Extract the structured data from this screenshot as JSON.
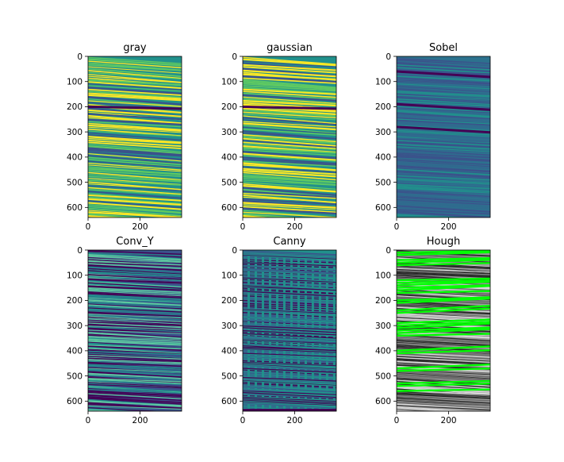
{
  "chart_data": {
    "type": "heatmap",
    "layout": "2x3 grid of image subplots",
    "panels": [
      {
        "title": "gray",
        "colormap": "viridis",
        "style": "gray",
        "xlim": [
          0,
          360
        ],
        "ylim": [
          640,
          0
        ],
        "xticks": [
          0,
          200
        ],
        "yticks": [
          0,
          100,
          200,
          300,
          400,
          500,
          600
        ]
      },
      {
        "title": "gaussian",
        "colormap": "viridis",
        "style": "gray",
        "xlim": [
          0,
          360
        ],
        "ylim": [
          640,
          0
        ],
        "xticks": [
          0,
          200
        ],
        "yticks": [
          0,
          100,
          200,
          300,
          400,
          500,
          600
        ]
      },
      {
        "title": "Sobel",
        "colormap": "viridis",
        "style": "sobel",
        "xlim": [
          0,
          360
        ],
        "ylim": [
          640,
          0
        ],
        "xticks": [
          0,
          200
        ],
        "yticks": [
          0,
          100,
          200,
          300,
          400,
          500,
          600
        ]
      },
      {
        "title": "Conv_Y",
        "colormap": "viridis",
        "style": "conv",
        "xlim": [
          0,
          360
        ],
        "ylim": [
          640,
          0
        ],
        "xticks": [
          0,
          200
        ],
        "yticks": [
          0,
          100,
          200,
          300,
          400,
          500,
          600
        ]
      },
      {
        "title": "Canny",
        "colormap": "viridis",
        "style": "canny",
        "xlim": [
          0,
          360
        ],
        "ylim": [
          640,
          0
        ],
        "xticks": [
          0,
          200
        ],
        "yticks": [
          0,
          100,
          200,
          300,
          400,
          500,
          600
        ]
      },
      {
        "title": "Hough",
        "colormap": "gray + green overlay",
        "style": "hough",
        "xlim": [
          0,
          360
        ],
        "ylim": [
          640,
          0
        ],
        "xticks": [
          0,
          200
        ],
        "yticks": [
          0,
          100,
          200,
          300,
          400,
          500,
          600
        ]
      }
    ]
  },
  "colors": {
    "viridis_dark": "#440154",
    "viridis_blue": "#3b528b",
    "viridis_teal": "#21918c",
    "viridis_green": "#5ec962",
    "viridis_yellow": "#fde725",
    "hough_line": "#00ff00"
  }
}
